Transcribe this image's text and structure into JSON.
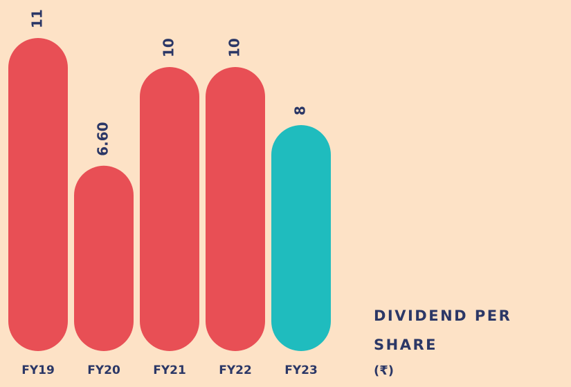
{
  "chart_data": {
    "type": "bar",
    "title": "DIVIDEND PER SHARE",
    "subtitle": "(₹)",
    "categories": [
      "FY19",
      "FY20",
      "FY21",
      "FY22",
      "FY23"
    ],
    "values": [
      11,
      6.6,
      10,
      10,
      8
    ],
    "value_labels": [
      "11",
      "6.60",
      "10",
      "10",
      "8"
    ],
    "colors": [
      "#e84f55",
      "#e84f55",
      "#e84f55",
      "#e84f55",
      "#1fbcbe"
    ]
  }
}
